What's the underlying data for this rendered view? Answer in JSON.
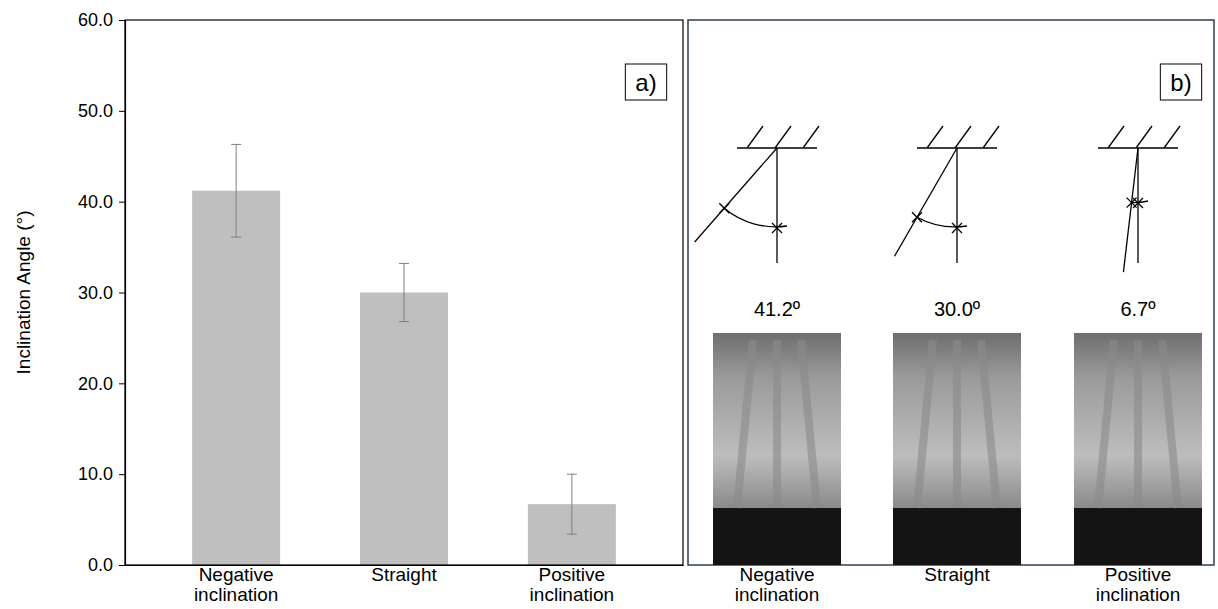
{
  "chart_data": {
    "type": "bar",
    "panel_label": "a)",
    "y_label": "Inclination Angle (°)",
    "categories": [
      "Negative inclination",
      "Straight",
      "Positive inclination"
    ],
    "values": [
      41.2,
      30.0,
      6.7
    ],
    "error": [
      5.1,
      3.2,
      3.3
    ],
    "color": "#bfbfbf",
    "ylim": [
      0,
      60
    ],
    "yticks": [
      {
        "value": 0,
        "label": "0.0"
      },
      {
        "value": 10,
        "label": "10.0"
      },
      {
        "value": 20,
        "label": "20.0"
      },
      {
        "value": 30,
        "label": "30.0"
      },
      {
        "value": 40,
        "label": "40.0"
      },
      {
        "value": 50,
        "label": "50.0"
      },
      {
        "value": 60,
        "label": "60.0"
      }
    ]
  },
  "panel_b": {
    "label": "b)",
    "items": [
      {
        "angle_label": "41.2º",
        "caption": "Negative inclination"
      },
      {
        "angle_label": "30.0º",
        "caption": "Straight"
      },
      {
        "angle_label": "6.7º",
        "caption": "Positive inclination"
      }
    ]
  }
}
